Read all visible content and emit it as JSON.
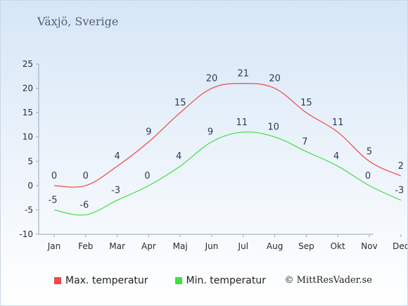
{
  "page": {
    "title": "Växjö, Sverige",
    "credit": "© MittResVader.se"
  },
  "chart_data": {
    "type": "line",
    "categories": [
      "Jan",
      "Feb",
      "Mar",
      "Apr",
      "Maj",
      "Jun",
      "Jul",
      "Aug",
      "Sep",
      "Okt",
      "Nov",
      "Dec"
    ],
    "series": [
      {
        "name": "Max. temperatur",
        "color": "#f04848",
        "values": [
          0,
          0,
          4,
          9,
          15,
          20,
          21,
          20,
          15,
          11,
          5,
          2
        ]
      },
      {
        "name": "Min. temperatur",
        "color": "#40e040",
        "values": [
          -5,
          -6,
          -3,
          0,
          4,
          9,
          11,
          10,
          7,
          4,
          0,
          -3
        ]
      }
    ],
    "yticks": [
      25,
      20,
      15,
      10,
      5,
      0,
      -5,
      -10
    ],
    "ylim": [
      -10,
      25
    ],
    "xlabel": "",
    "ylabel": "",
    "grid": false,
    "legend_position": "bottom-left"
  }
}
